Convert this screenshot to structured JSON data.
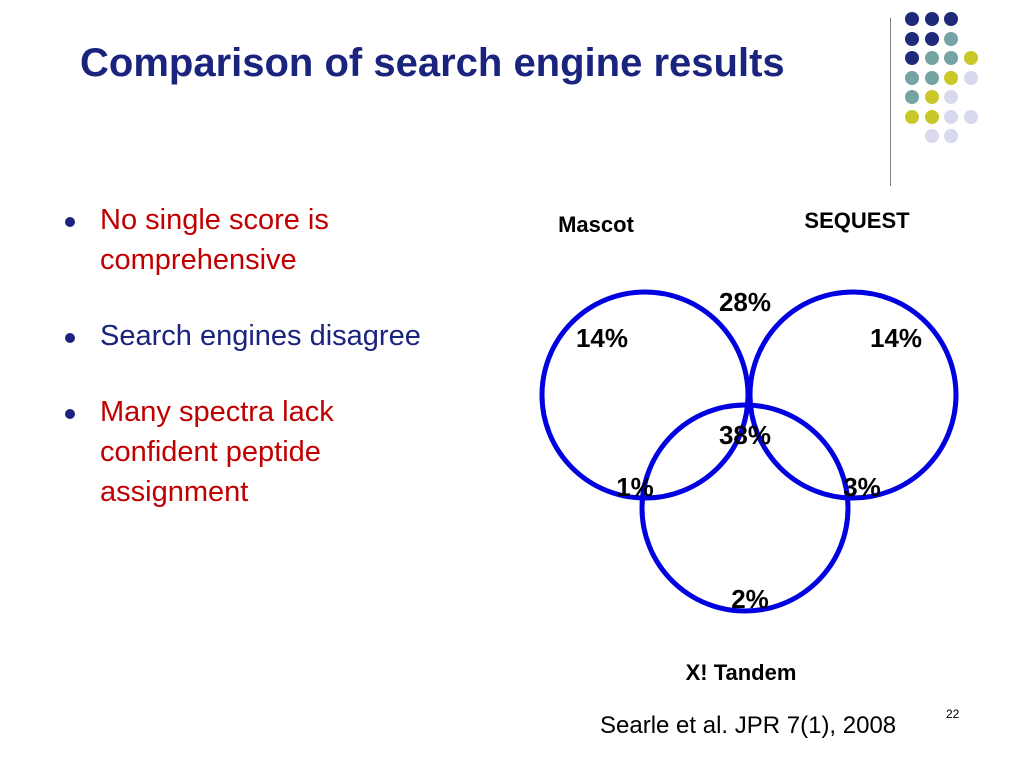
{
  "slide": {
    "title": "Comparison of search engine results",
    "bullets": [
      {
        "text": "No single score is comprehensive",
        "color": "#c00000"
      },
      {
        "text": "Search engines disagree",
        "color": "#1a237e"
      },
      {
        "text": "Many spectra lack confident peptide assignment",
        "color": "#c00000"
      }
    ],
    "citation": "Searle et al. JPR 7(1), 2008",
    "page_number": "22"
  },
  "colors": {
    "title": "#1a237e",
    "circle_stroke": "#0000e0",
    "divider": "#808080",
    "dot_navy": "#1f2a7a",
    "dot_teal": "#76a3a3",
    "dot_olive": "#c8c828",
    "dot_lavender": "#d8d8ee"
  },
  "decoration": {
    "dot_grid": [
      [
        "dot_navy",
        "dot_navy",
        "dot_navy",
        null
      ],
      [
        "dot_navy",
        "dot_navy",
        "dot_teal",
        null
      ],
      [
        "dot_navy",
        "dot_teal",
        "dot_teal",
        "dot_olive"
      ],
      [
        "dot_teal",
        "dot_teal",
        "dot_olive",
        "dot_lavender"
      ],
      [
        "dot_teal",
        "dot_olive",
        "dot_lavender",
        null
      ],
      [
        "dot_olive",
        "dot_olive",
        "dot_lavender",
        "dot_lavender"
      ],
      [
        null,
        "dot_lavender",
        "dot_lavender",
        null
      ]
    ]
  },
  "venn": {
    "sets": {
      "mascot": "Mascot",
      "sequest": "SEQUEST",
      "xtandem": "X! Tandem"
    },
    "regions": {
      "mascot_only": "14%",
      "sequest_only": "14%",
      "xtandem_only": "2%",
      "mascot_sequest": "28%",
      "mascot_xtandem": "1%",
      "sequest_xtandem": "3%",
      "all_three": "38%"
    }
  }
}
